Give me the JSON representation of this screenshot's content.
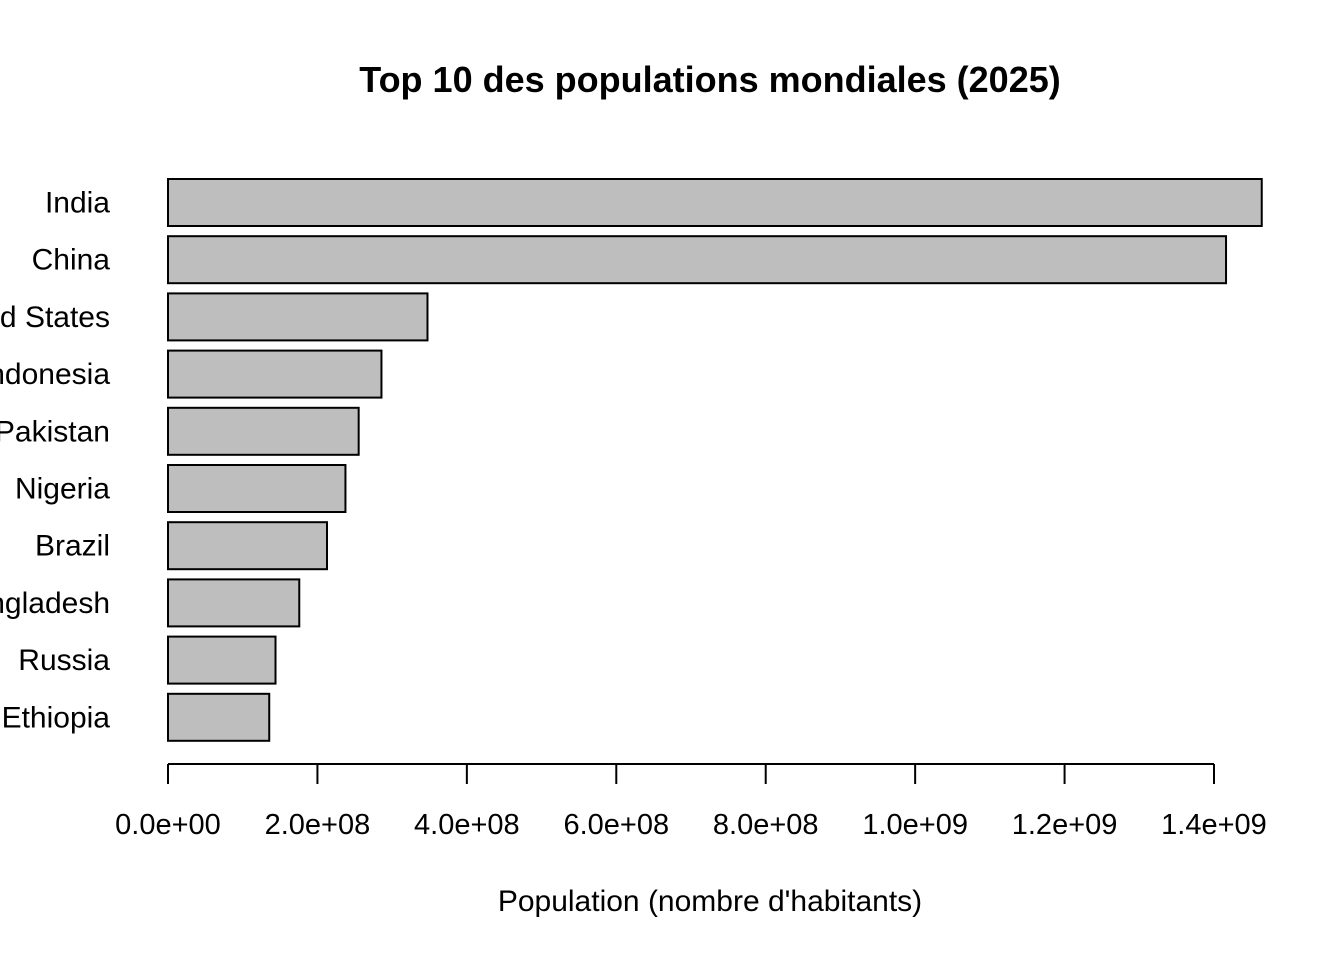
{
  "chart_data": {
    "type": "bar",
    "orientation": "horizontal",
    "title": "Top 10 des populations mondiales (2025)",
    "xlabel": "Population (nombre d'habitants)",
    "ylabel": "",
    "categories": [
      "India",
      "China",
      "United States",
      "Indonesia",
      "Pakistan",
      "Nigeria",
      "Brazil",
      "Bangladesh",
      "Russia",
      "Ethiopia"
    ],
    "values": [
      1463900000,
      1416100000,
      347300000,
      285700000,
      255200000,
      237500000,
      212800000,
      175700000,
      143900000,
      135500000
    ],
    "xlim": [
      0,
      1400000000
    ],
    "ticks": [
      0,
      200000000,
      400000000,
      600000000,
      800000000,
      1000000000,
      1200000000,
      1400000000
    ],
    "tick_labels": [
      "0.0e+00",
      "2.0e+08",
      "4.0e+08",
      "6.0e+08",
      "8.0e+08",
      "1.0e+09",
      "1.2e+09",
      "1.4e+09"
    ],
    "grid": false,
    "bar_color": "#bebebe",
    "bar_edge_color": "#000000"
  }
}
